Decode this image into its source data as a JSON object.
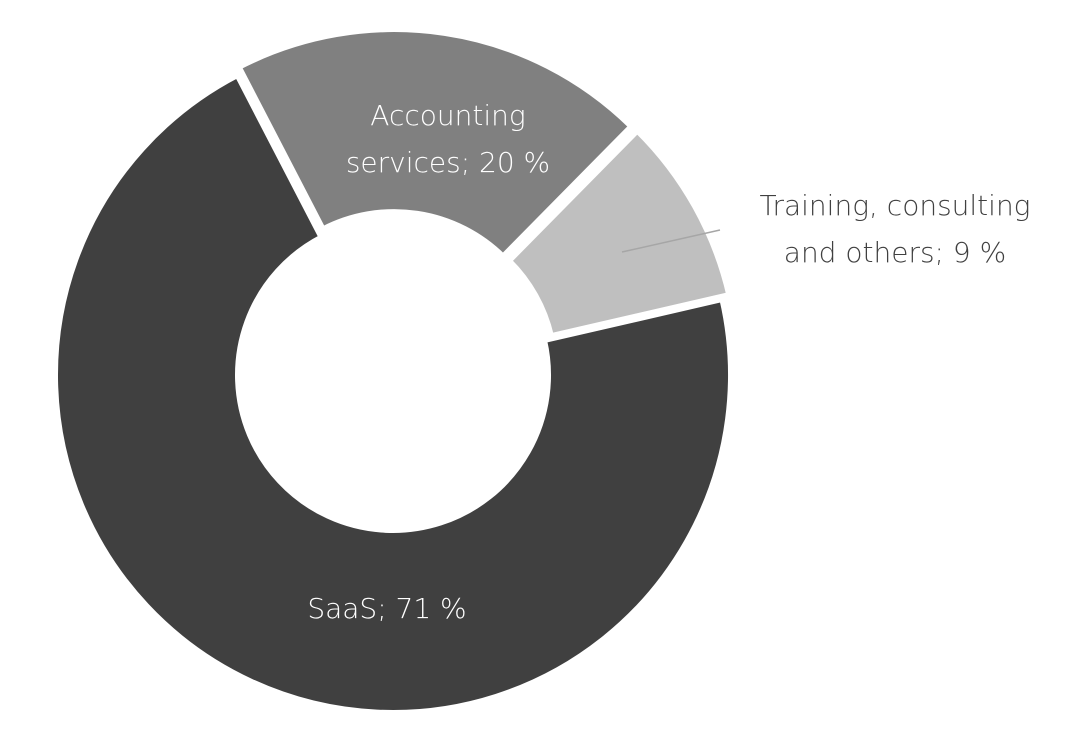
{
  "chart_data": {
    "type": "donut",
    "values": [
      71,
      20,
      9
    ],
    "value_labels": [
      "SaaS; 71 %",
      "Accounting services; 20 %",
      "Training, consulting and others; 9 %"
    ],
    "colors": [
      "#404040",
      "#808080",
      "#bfbfbf"
    ]
  }
}
